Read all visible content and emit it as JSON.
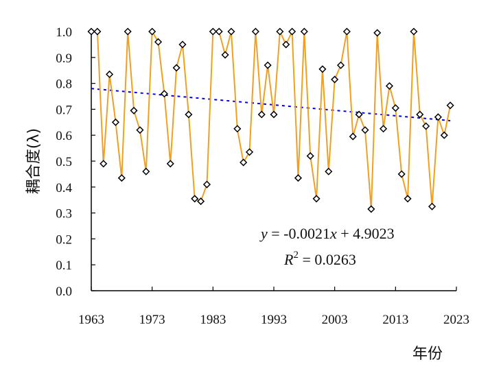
{
  "chart_data": {
    "type": "line",
    "xlabel": "年份",
    "ylabel": "耦合度(λ)",
    "xlim": [
      1963,
      2023
    ],
    "ylim": [
      0,
      1
    ],
    "x_ticks": [
      "1963",
      "1973",
      "1983",
      "1993",
      "2003",
      "2013",
      "2023"
    ],
    "y_ticks": [
      "0.0",
      "0.1",
      "0.2",
      "0.3",
      "0.4",
      "0.5",
      "0.6",
      "0.7",
      "0.8",
      "0.9",
      "1.0"
    ],
    "grid": false,
    "series": [
      {
        "color": "#f0a020",
        "marker": "diamond",
        "x": [
          1963,
          1964,
          1965,
          1966,
          1967,
          1968,
          1969,
          1970,
          1971,
          1972,
          1973,
          1974,
          1975,
          1976,
          1977,
          1978,
          1979,
          1980,
          1981,
          1982,
          1983,
          1984,
          1985,
          1986,
          1987,
          1988,
          1989,
          1990,
          1991,
          1992,
          1993,
          1994,
          1995,
          1996,
          1997,
          1998,
          1999,
          2000,
          2001,
          2002,
          2003,
          2004,
          2005,
          2006,
          2007,
          2008,
          2009,
          2010,
          2011,
          2012,
          2013,
          2014,
          2015,
          2016,
          2017,
          2018,
          2019,
          2020,
          2021,
          2022
        ],
        "values": [
          1.0,
          1.0,
          0.49,
          0.835,
          0.65,
          0.435,
          1.0,
          0.695,
          0.62,
          0.46,
          1.0,
          0.96,
          0.76,
          0.49,
          0.86,
          0.95,
          0.68,
          0.355,
          0.345,
          0.41,
          1.0,
          1.0,
          0.91,
          1.0,
          0.625,
          0.495,
          0.535,
          1.0,
          0.68,
          0.87,
          0.68,
          1.0,
          0.95,
          1.0,
          0.435,
          1.0,
          0.52,
          0.355,
          0.855,
          0.46,
          0.815,
          0.87,
          1.0,
          0.595,
          0.68,
          0.62,
          0.315,
          0.995,
          0.625,
          0.79,
          0.705,
          0.45,
          0.355,
          1.0,
          0.68,
          0.635,
          0.325,
          0.67,
          0.6,
          0.715
        ]
      }
    ],
    "trendline": {
      "color": "#0000ee",
      "style": "dotted",
      "slope": -0.0021,
      "intercept": 4.9023
    },
    "annotations": {
      "equation_y": "y",
      "equation_rest": " = -0.0021",
      "equation_x": "x",
      "equation_tail": " + 4.9023",
      "r2_label": "R",
      "r2_sup": "2",
      "r2_value": " = 0.0263"
    }
  }
}
